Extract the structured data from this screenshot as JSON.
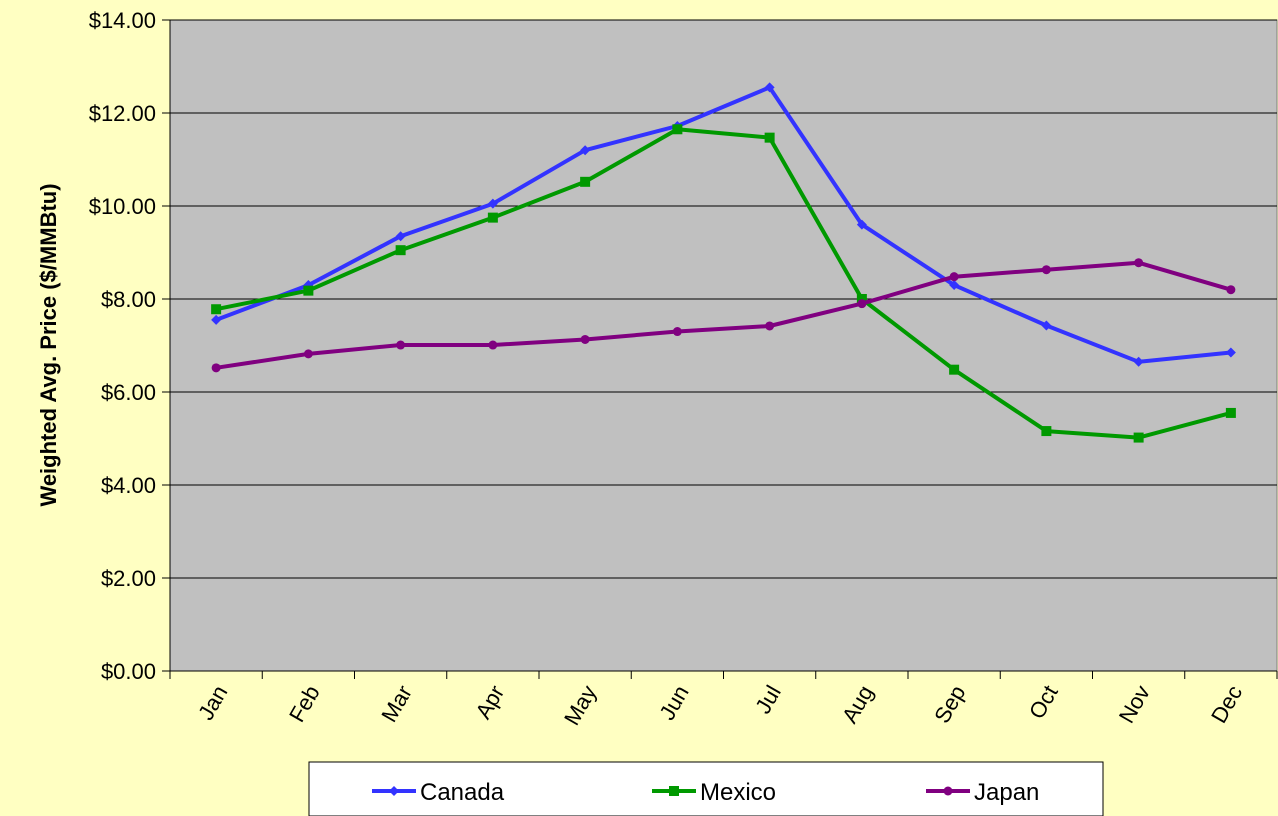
{
  "chart_data": {
    "type": "line",
    "title": "",
    "xlabel": "",
    "ylabel": "Weighted Avg. Price ($/MMBtu)",
    "categories": [
      "Jan",
      "Feb",
      "Mar",
      "Apr",
      "May",
      "Jun",
      "Jul",
      "Aug",
      "Sep",
      "Oct",
      "Nov",
      "Dec"
    ],
    "ylim": [
      0,
      14
    ],
    "yticks": [
      0,
      2,
      4,
      6,
      8,
      10,
      12,
      14
    ],
    "ytick_labels": [
      "$0.00",
      "$2.00",
      "$4.00",
      "$6.00",
      "$8.00",
      "$10.00",
      "$12.00",
      "$14.00"
    ],
    "grid": true,
    "legend_position": "bottom",
    "series": [
      {
        "name": "Canada",
        "color": "#3333ff",
        "marker": "diamond",
        "values": [
          7.55,
          8.3,
          9.35,
          10.05,
          11.2,
          11.72,
          12.55,
          9.6,
          8.3,
          7.43,
          6.65,
          6.85
        ]
      },
      {
        "name": "Mexico",
        "color": "#009900",
        "marker": "square",
        "values": [
          7.78,
          8.18,
          9.05,
          9.75,
          10.52,
          11.65,
          11.47,
          8.0,
          6.48,
          5.16,
          5.02,
          5.55
        ]
      },
      {
        "name": "Japan",
        "color": "#800080",
        "marker": "circle",
        "values": [
          6.52,
          6.82,
          7.01,
          7.01,
          7.13,
          7.3,
          7.42,
          7.9,
          8.48,
          8.63,
          8.78,
          8.2
        ]
      }
    ],
    "plot_background": "#c0c0c0",
    "page_background": "#ffffc2"
  }
}
